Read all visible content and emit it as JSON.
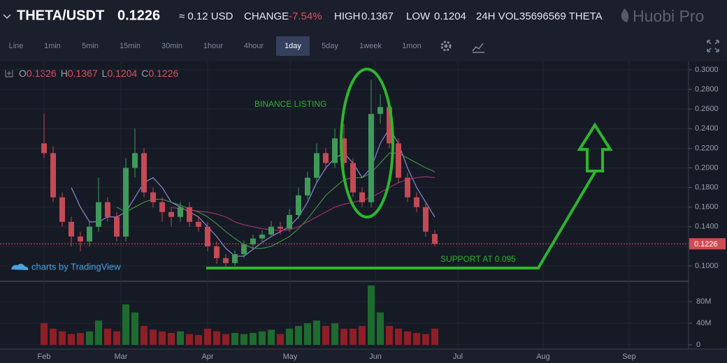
{
  "header": {
    "pair": "THETA/USDT",
    "price": "0.1226",
    "approx": "≈ 0.12 USD",
    "change_label": "CHANGE",
    "change": "-7.54%",
    "high_label": "HIGH",
    "high": "0.1367",
    "low_label": "LOW",
    "low": "0.1204",
    "volume_label": "24H VOL",
    "volume": "35696569 THETA",
    "brand": "Huobi Pro"
  },
  "toolbar": {
    "intervals": [
      {
        "label": "Line",
        "active": false
      },
      {
        "label": "1min",
        "active": false
      },
      {
        "label": "5min",
        "active": false
      },
      {
        "label": "15min",
        "active": false
      },
      {
        "label": "30min",
        "active": false
      },
      {
        "label": "1hour",
        "active": false
      },
      {
        "label": "4hour",
        "active": false
      },
      {
        "label": "1day",
        "active": true
      },
      {
        "label": "5day",
        "active": false
      },
      {
        "label": "1week",
        "active": false
      },
      {
        "label": "1mon",
        "active": false
      }
    ]
  },
  "ohlc_labels": [
    "O",
    "H",
    "L",
    "C"
  ],
  "watermark": "charts by TradingView",
  "annotations": {
    "listing": "BINANCE LISTING",
    "support": "SUPPORT AT 0.095"
  },
  "chart_data": {
    "type": "candlestick",
    "categories": [
      "Feb",
      "Mar",
      "Apr",
      "May",
      "Jun",
      "Jul",
      "Aug",
      "Sep"
    ],
    "series": {
      "open": [
        0.225,
        0.215,
        0.17,
        0.145,
        0.13,
        0.125,
        0.14,
        0.165,
        0.15,
        0.13,
        0.2,
        0.215,
        0.175,
        0.165,
        0.155,
        0.15,
        0.16,
        0.145,
        0.14,
        0.12,
        0.108,
        0.103,
        0.112,
        0.122,
        0.128,
        0.132,
        0.14,
        0.138,
        0.152,
        0.172,
        0.19,
        0.215,
        0.205,
        0.23,
        0.205,
        0.175,
        0.165,
        0.255,
        0.262,
        0.225,
        0.19,
        0.17,
        0.16,
        0.1326
      ],
      "high": [
        0.255,
        0.222,
        0.175,
        0.15,
        0.135,
        0.145,
        0.19,
        0.17,
        0.155,
        0.21,
        0.24,
        0.22,
        0.18,
        0.17,
        0.16,
        0.165,
        0.165,
        0.15,
        0.145,
        0.125,
        0.112,
        0.116,
        0.126,
        0.132,
        0.136,
        0.146,
        0.145,
        0.158,
        0.18,
        0.196,
        0.225,
        0.22,
        0.24,
        0.245,
        0.21,
        0.18,
        0.29,
        0.275,
        0.265,
        0.23,
        0.195,
        0.175,
        0.165,
        0.1367
      ],
      "low": [
        0.21,
        0.165,
        0.14,
        0.12,
        0.115,
        0.12,
        0.135,
        0.145,
        0.125,
        0.125,
        0.19,
        0.17,
        0.16,
        0.145,
        0.14,
        0.145,
        0.14,
        0.135,
        0.115,
        0.102,
        0.099,
        0.1,
        0.108,
        0.118,
        0.125,
        0.13,
        0.132,
        0.135,
        0.148,
        0.168,
        0.185,
        0.198,
        0.2,
        0.2,
        0.17,
        0.16,
        0.16,
        0.245,
        0.22,
        0.185,
        0.165,
        0.155,
        0.13,
        0.1204
      ],
      "close": [
        0.215,
        0.17,
        0.145,
        0.13,
        0.125,
        0.14,
        0.165,
        0.15,
        0.13,
        0.2,
        0.215,
        0.175,
        0.165,
        0.155,
        0.15,
        0.16,
        0.145,
        0.14,
        0.12,
        0.108,
        0.103,
        0.112,
        0.122,
        0.128,
        0.132,
        0.14,
        0.138,
        0.152,
        0.172,
        0.19,
        0.215,
        0.205,
        0.23,
        0.205,
        0.175,
        0.165,
        0.255,
        0.262,
        0.225,
        0.19,
        0.17,
        0.16,
        0.135,
        0.1226
      ]
    },
    "up_color": "#3f9a5b",
    "down_color": "#c44a55",
    "ma_lines": [
      {
        "color": "#8b88d8",
        "values": [
          null,
          null,
          null,
          0.18,
          0.16,
          0.145,
          0.145,
          0.15,
          0.15,
          0.155,
          0.17,
          0.185,
          0.19,
          0.18,
          0.165,
          0.16,
          0.155,
          0.15,
          0.14,
          0.13,
          0.118,
          0.11,
          0.11,
          0.117,
          0.124,
          0.13,
          0.135,
          0.14,
          0.15,
          0.165,
          0.185,
          0.2,
          0.21,
          0.215,
          0.205,
          0.19,
          0.2,
          0.225,
          0.24,
          0.225,
          0.2,
          0.18,
          0.165,
          0.15
        ]
      },
      {
        "color": "#3d8f45",
        "values": [
          null,
          null,
          null,
          null,
          null,
          null,
          null,
          null,
          0.16,
          0.155,
          0.16,
          0.165,
          0.168,
          0.168,
          0.165,
          0.162,
          0.158,
          0.155,
          0.15,
          0.143,
          0.135,
          0.128,
          0.122,
          0.118,
          0.118,
          0.12,
          0.125,
          0.13,
          0.138,
          0.148,
          0.16,
          0.172,
          0.18,
          0.188,
          0.19,
          0.19,
          0.195,
          0.205,
          0.215,
          0.215,
          0.21,
          0.205,
          0.2,
          0.196
        ]
      },
      {
        "color": "#a0306f",
        "values": [
          null,
          null,
          null,
          null,
          null,
          null,
          null,
          null,
          null,
          null,
          null,
          null,
          null,
          null,
          0.16,
          0.158,
          0.157,
          0.156,
          0.155,
          0.153,
          0.15,
          0.145,
          0.142,
          0.14,
          0.138,
          0.137,
          0.136,
          0.137,
          0.14,
          0.145,
          0.15,
          0.155,
          0.16,
          0.163,
          0.165,
          0.167,
          0.17,
          0.175,
          0.18,
          0.185,
          0.188,
          0.19,
          0.191,
          0.19
        ]
      }
    ],
    "ylim": [
      0.0865,
      0.3085
    ],
    "yticks": [
      {
        "value": 0.1,
        "label": "0.1000"
      },
      {
        "value": 0.12,
        "label": "0.1200"
      },
      {
        "value": 0.14,
        "label": "0.1400"
      },
      {
        "value": 0.16,
        "label": "0.1600"
      },
      {
        "value": 0.18,
        "label": "0.1800"
      },
      {
        "value": 0.2,
        "label": "0.2000"
      },
      {
        "value": 0.22,
        "label": "0.2200"
      },
      {
        "value": 0.24,
        "label": "0.2400"
      },
      {
        "value": 0.26,
        "label": "0.2600"
      },
      {
        "value": 0.28,
        "label": "0.2800"
      },
      {
        "value": 0.3,
        "label": "0.3000"
      }
    ],
    "grid": true,
    "volume": {
      "values": [
        40000000,
        30000000,
        25000000,
        20000000,
        22000000,
        25000000,
        45000000,
        30000000,
        25000000,
        75000000,
        60000000,
        35000000,
        28000000,
        25000000,
        22000000,
        25000000,
        20000000,
        18000000,
        30000000,
        25000000,
        20000000,
        22000000,
        20000000,
        22000000,
        25000000,
        28000000,
        20000000,
        30000000,
        35000000,
        40000000,
        45000000,
        35000000,
        40000000,
        30000000,
        30000000,
        35000000,
        110000000,
        60000000,
        35000000,
        30000000,
        25000000,
        22000000,
        20000000,
        30000000
      ],
      "up_color": "#1e6b30",
      "down_color": "#8f1f26",
      "ylim": [
        0,
        115000000
      ],
      "yticks": [
        0,
        {
          "value": 40000000,
          "label": "40M"
        },
        {
          "value": 80000000,
          "label": "80M"
        }
      ]
    }
  }
}
